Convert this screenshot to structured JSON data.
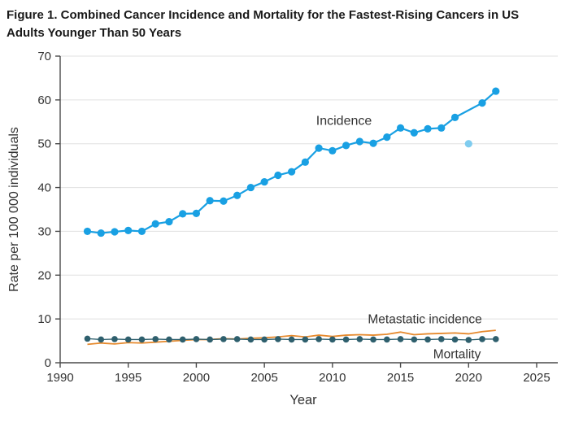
{
  "figure": {
    "title_line1": "Figure 1.  Combined Cancer Incidence and Mortality for the Fastest-Rising Cancers in US",
    "title_line2": "Adults Younger Than 50 Years"
  },
  "chart_data": {
    "type": "line",
    "xlabel": "Year",
    "ylabel": "Rate per 100 000 individuals",
    "xlim": [
      1990,
      2025
    ],
    "ylim": [
      0,
      70
    ],
    "x_ticks": [
      1990,
      1995,
      2000,
      2005,
      2010,
      2015,
      2020,
      2025
    ],
    "y_ticks": [
      0,
      10,
      20,
      30,
      40,
      50,
      60,
      70
    ],
    "grid": "horizontal",
    "colors": {
      "incidence": "#19a0e3",
      "incidence_2020_point": "#7fccef",
      "metastatic": "#e68a2e",
      "mortality": "#2e5f6d",
      "gridline": "#e0e0e0",
      "axis": "#4a4a4a"
    },
    "series": [
      {
        "name": "Incidence",
        "color": "#19a0e3",
        "marker": true,
        "marker_r": 4.6,
        "line_width": 2.2,
        "x": [
          1992,
          1993,
          1994,
          1995,
          1996,
          1997,
          1998,
          1999,
          2000,
          2001,
          2002,
          2003,
          2004,
          2005,
          2006,
          2007,
          2008,
          2009,
          2010,
          2011,
          2012,
          2013,
          2014,
          2015,
          2016,
          2017,
          2018,
          2019,
          2021,
          2022
        ],
        "values": [
          30.0,
          29.6,
          29.9,
          30.2,
          30.0,
          31.7,
          32.2,
          34.0,
          34.1,
          37.0,
          36.9,
          38.2,
          40.0,
          41.3,
          42.8,
          43.6,
          45.8,
          49.0,
          48.4,
          49.6,
          50.5,
          50.1,
          51.5,
          53.6,
          52.5,
          53.4,
          53.6,
          56.0,
          59.3,
          62.0
        ]
      },
      {
        "name": "Incidence 2020 point",
        "color": "#7fccef",
        "marker": true,
        "marker_r": 4.6,
        "line_width": 0,
        "x": [
          2020
        ],
        "values": [
          50.0
        ]
      },
      {
        "name": "Metastatic incidence",
        "color": "#e68a2e",
        "marker": false,
        "marker_r": 0,
        "line_width": 1.8,
        "x": [
          1992,
          1993,
          1994,
          1995,
          1996,
          1997,
          1998,
          1999,
          2000,
          2001,
          2002,
          2003,
          2004,
          2005,
          2006,
          2007,
          2008,
          2009,
          2010,
          2011,
          2012,
          2013,
          2014,
          2015,
          2016,
          2017,
          2018,
          2019,
          2020,
          2021,
          2022
        ],
        "values": [
          4.2,
          4.5,
          4.3,
          4.6,
          4.5,
          4.7,
          4.9,
          5.1,
          5.3,
          5.3,
          5.5,
          5.4,
          5.6,
          5.7,
          5.9,
          6.2,
          5.9,
          6.3,
          6.0,
          6.3,
          6.4,
          6.3,
          6.5,
          7.0,
          6.4,
          6.6,
          6.7,
          6.8,
          6.6,
          7.1,
          7.4
        ]
      },
      {
        "name": "Mortality",
        "color": "#2e5f6d",
        "marker": true,
        "marker_r": 3.8,
        "line_width": 1.3,
        "x": [
          1992,
          1993,
          1994,
          1995,
          1996,
          1997,
          1998,
          1999,
          2000,
          2001,
          2002,
          2003,
          2004,
          2005,
          2006,
          2007,
          2008,
          2009,
          2010,
          2011,
          2012,
          2013,
          2014,
          2015,
          2016,
          2017,
          2018,
          2019,
          2020,
          2021,
          2022
        ],
        "values": [
          5.5,
          5.3,
          5.4,
          5.3,
          5.3,
          5.4,
          5.3,
          5.3,
          5.4,
          5.3,
          5.4,
          5.4,
          5.3,
          5.3,
          5.4,
          5.3,
          5.3,
          5.4,
          5.3,
          5.3,
          5.4,
          5.3,
          5.3,
          5.4,
          5.3,
          5.3,
          5.4,
          5.3,
          5.2,
          5.4,
          5.4
        ]
      }
    ],
    "annotations": [
      {
        "text": "Incidence",
        "year": 2008.8,
        "value": 54.3,
        "anchor": "start",
        "font_size": 16
      },
      {
        "text": "Metastatic incidence",
        "year": 2012.6,
        "value": 9.0,
        "anchor": "start",
        "font_size": 15.5
      },
      {
        "text": "Mortality",
        "year": 2017.4,
        "value": 1.0,
        "anchor": "start",
        "font_size": 15.5
      }
    ]
  }
}
